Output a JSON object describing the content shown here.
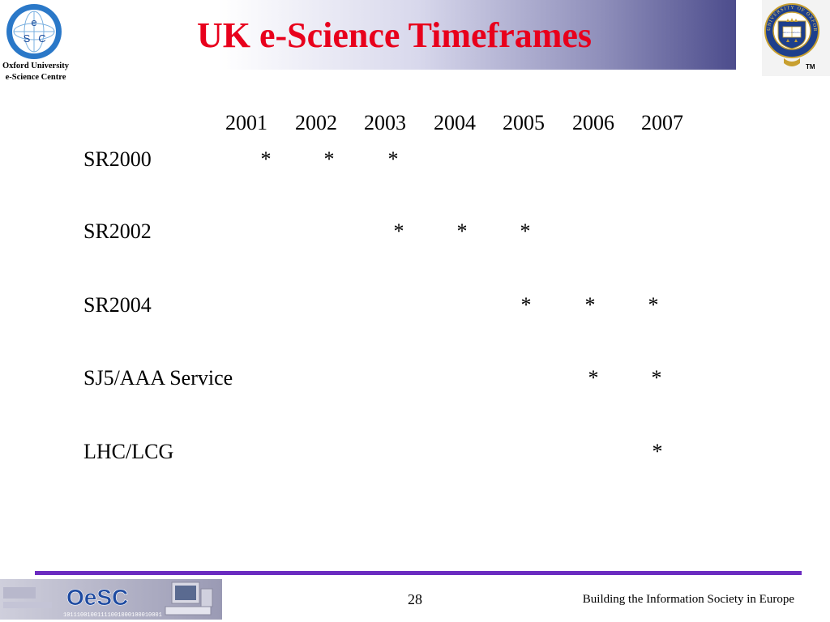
{
  "header": {
    "title": "UK e-Science Timeframes",
    "logo_caption_line1": "Oxford University",
    "logo_caption_line2": "e-Science Centre",
    "logo_letters": [
      "e",
      "S",
      "C"
    ],
    "crest_text": "UNIVERSITY OF OXFORD",
    "crest_book": "DOMINUS ILLUMINATIO MEA",
    "trademark": "TM",
    "title_color": "#e8001c"
  },
  "timeline": {
    "years": [
      "2001",
      "2002",
      "2003",
      "2004",
      "2005",
      "2006",
      "2007"
    ],
    "star_symbol": "*",
    "rows": [
      {
        "label": "SR2000",
        "years": [
          "2001",
          "2002",
          "2003"
        ]
      },
      {
        "label": "SR2002",
        "years": [
          "2003",
          "2004",
          "2005"
        ]
      },
      {
        "label": "SR2004",
        "years": [
          "2005",
          "2006",
          "2007"
        ]
      },
      {
        "label": "SJ5/AAA Service",
        "years": [
          "2006",
          "2007"
        ]
      },
      {
        "label": "LHC/LCG",
        "years": [
          "2007"
        ]
      }
    ]
  },
  "footer": {
    "page_number": "28",
    "text": "Building the Information Society in Europe",
    "banner_logo": "OeSC",
    "banner_binary": "10111001001111001000100010001",
    "line_color": "#6b2bc0"
  }
}
